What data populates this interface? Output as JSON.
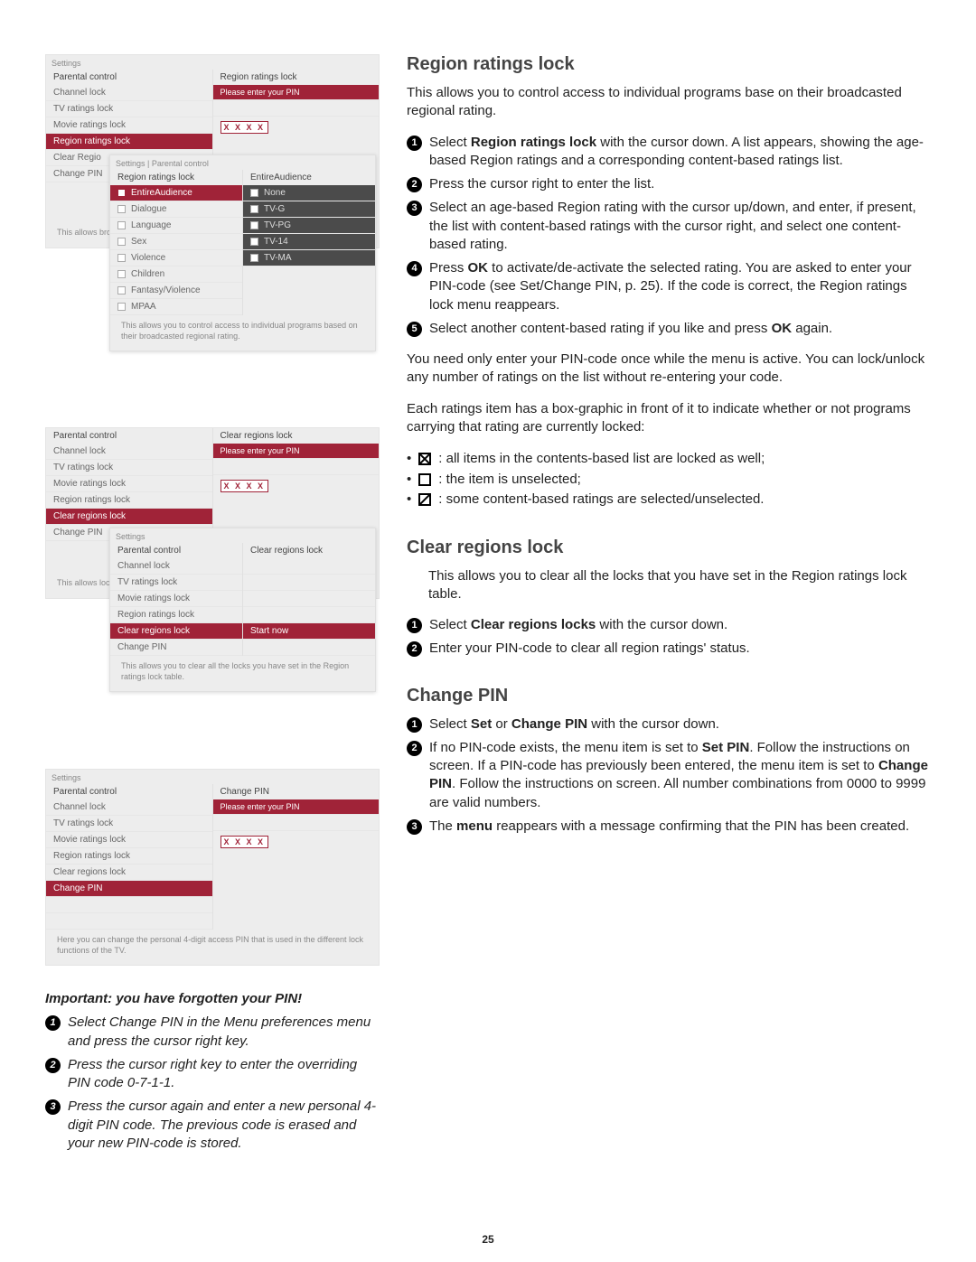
{
  "pagenum": "25",
  "menus": {
    "m1": {
      "hdr": "Settings",
      "leftHdr": "Parental control",
      "rightHdr": "Region ratings lock",
      "leftRows": [
        "Channel lock",
        "TV ratings lock",
        "Movie ratings lock",
        "Region ratings lock",
        "Clear Regio",
        "Change PIN"
      ],
      "selIdx": 3,
      "pinPrompt": "Please enter your PIN",
      "pinMask": "X X X X",
      "foot": "This allows broadcaste"
    },
    "m1b": {
      "hdr": "Settings | Parental control",
      "leftHdr": "Region ratings lock",
      "rightHdr": "EntireAudience",
      "leftRows": [
        "EntireAudience",
        "Dialogue",
        "Language",
        "Sex",
        "Violence",
        "Children",
        "Fantasy/Violence",
        "MPAA"
      ],
      "rightRows": [
        "None",
        "TV-G",
        "TV-PG",
        "TV-14",
        "TV-MA"
      ],
      "foot": "This allows you to control access to individual programs based on their broadcasted regional rating."
    },
    "m2": {
      "leftHdr": "Parental control",
      "rightHdr": "Clear regions lock",
      "leftRows": [
        "Channel lock",
        "TV ratings lock",
        "Movie ratings lock",
        "Region ratings lock",
        "Clear regions lock",
        "Change PIN"
      ],
      "selIdx": 4,
      "pinPrompt": "Please enter your PIN",
      "pinMask": "X X X X",
      "foot": "This allows lock table"
    },
    "m2b": {
      "hdr": "Settings",
      "leftHdr": "Parental control",
      "rightHdr": "Clear regions lock",
      "leftRows": [
        "Channel lock",
        "TV ratings lock",
        "Movie ratings lock",
        "Region ratings lock",
        "Clear regions lock",
        "Change PIN"
      ],
      "selIdx": 4,
      "start": "Start now",
      "foot": "This allows you to clear all the locks you have set in the Region ratings lock table."
    },
    "m3": {
      "hdr": "Settings",
      "leftHdr": "Parental control",
      "rightHdr": "Change PIN",
      "leftRows": [
        "Channel lock",
        "TV ratings lock",
        "Movie ratings lock",
        "Region ratings lock",
        "Clear regions lock",
        "Change PIN"
      ],
      "selIdx": 5,
      "pinPrompt": "Please enter your PIN",
      "pinMask": "X X X X",
      "foot": "Here you can change the personal 4-digit access PIN that is used in the different lock functions of the TV."
    }
  },
  "right": {
    "s1": {
      "title": "Region ratings lock",
      "intro": "This allows you to control access to individual programs base on their broadcasted regional rating.",
      "steps": [
        "Select <b>Region ratings lock</b> with the cursor down. A list appears, showing the age-based Region ratings and a corresponding content-based ratings list.",
        "Press the cursor right to enter the list.",
        "Select an age-based Region rating with the cursor up/down, and enter, if present, the list with content-based ratings with the cursor right, and select one content-based rating.",
        "Press <b>OK</b> to activate/de-activate the selected rating. You are asked to enter your PIN-code (see Set/Change PIN, p. 25). If the code is correct, the Region ratings lock menu reappears.",
        "Select another content-based rating if you like and press <b>OK</b> again."
      ],
      "post1": "You need only enter your PIN-code once while the menu is active. You can lock/unlock any number of ratings on the list without re-entering your code.",
      "post2": "Each ratings item has a box-graphic in front of it to indicate whether or not programs carrying that rating are currently locked:",
      "bullets": [
        ": all items in the contents-based list are locked as well;",
        ": the item is unselected;",
        ": some content-based ratings are selected/unselected."
      ]
    },
    "s2": {
      "title": "Clear regions lock",
      "intro": "This allows you to clear all the locks that you have set in the Region ratings lock table.",
      "steps": [
        "Select <b>Clear regions locks</b> with the cursor down.",
        "Enter your PIN-code to clear all region ratings' status."
      ]
    },
    "s3": {
      "title": "Change PIN",
      "steps": [
        "Select <b>Set</b> or <b>Change PIN</b> with the cursor down.",
        "If no PIN-code exists, the menu item is set to <b>Set PIN</b>. Follow the instructions on screen. If a PIN-code has previously been entered, the menu item is set to <b>Change PIN</b>. Follow the instructions on screen. All number combinations from 0000 to 9999 are valid numbers.",
        "The <b>menu</b> reappears with a message confirming that the PIN has been created."
      ]
    }
  },
  "forgot": {
    "title": "Important: you have forgotten your PIN!",
    "steps": [
      "Select Change PIN in the Menu preferences menu and press the cursor right key.",
      "Press the cursor right key to enter the overriding PIN code 0-7-1-1.",
      "Press the cursor again and enter a new personal 4-digit PIN code. The previous code is erased and your new PIN-code is stored."
    ]
  }
}
